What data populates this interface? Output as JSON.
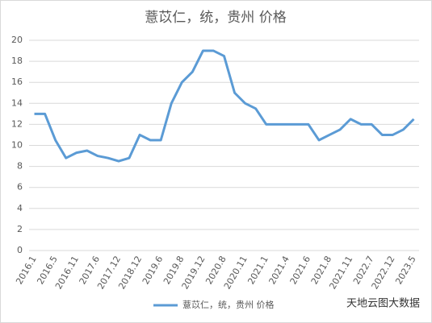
{
  "chart_data": {
    "type": "line",
    "title": "薏苡仁，统，贵州 价格",
    "categories": [
      "2016.1",
      null,
      "2016.5",
      null,
      "2016.11",
      null,
      "2017.6",
      null,
      "2017.12",
      null,
      "2018.12",
      null,
      "2019.6",
      null,
      "2019.8",
      null,
      "2019.12",
      null,
      "2020.8",
      null,
      "2020.11",
      null,
      "2021.1",
      null,
      "2021.4",
      null,
      "2021.6",
      null,
      "2021.8",
      null,
      "2021.11",
      null,
      "2022.7",
      null,
      "2022.12",
      null,
      "2023.5"
    ],
    "series": [
      {
        "name": "薏苡仁，统，贵州 价格",
        "color": "#5b9bd5",
        "values": [
          13,
          13,
          10.5,
          8.8,
          9.3,
          9.5,
          9.0,
          8.8,
          8.5,
          8.8,
          11,
          10.5,
          10.5,
          14,
          16,
          17,
          19,
          19,
          18.5,
          15,
          14,
          13.5,
          12,
          12,
          12,
          12,
          12,
          10.5,
          11,
          11.5,
          12.5,
          12,
          12,
          11,
          11,
          11.5,
          12.5
        ]
      }
    ],
    "ylim": [
      0,
      20
    ],
    "yticks": [
      0,
      2,
      4,
      6,
      8,
      10,
      12,
      14,
      16,
      18,
      20
    ],
    "grid": true,
    "legend": "bottom",
    "watermark": "天地云图大数据"
  }
}
